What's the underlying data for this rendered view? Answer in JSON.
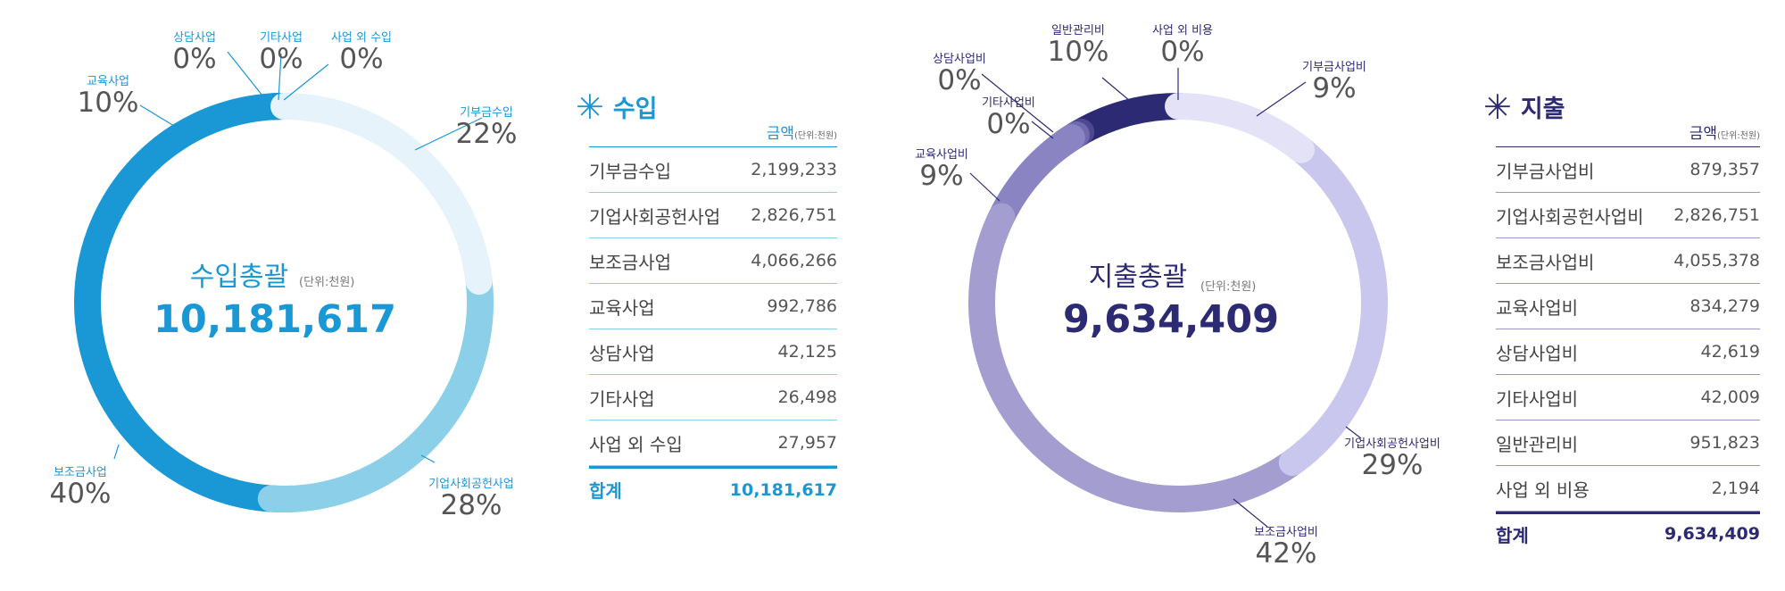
{
  "colors": {
    "income_text": "#1a97d5",
    "income_line": "#8ccfe9",
    "income_dark": "#1a97d5",
    "expense_text": "#2c2a72",
    "expense_line": "#9a95c9",
    "expense_dark": "#2c2a72"
  },
  "income": {
    "center_title": "수입총괄",
    "center_unit": "(단위:천원)",
    "center_total": "10,181,617",
    "section_title": "수입",
    "amount_header": "금액",
    "amount_unit": "(단위:천원)",
    "rows": [
      {
        "label": "기부금수입",
        "value": "2,199,233"
      },
      {
        "label": "기업사회공헌사업",
        "value": "2,826,751"
      },
      {
        "label": "보조금사업",
        "value": "4,066,266"
      },
      {
        "label": "교육사업",
        "value": "992,786"
      },
      {
        "label": "상담사업",
        "value": "42,125"
      },
      {
        "label": "기타사업",
        "value": "26,498"
      },
      {
        "label": "사업 외 수입",
        "value": "27,957"
      }
    ],
    "total": {
      "label": "합계",
      "value": "10,181,617"
    }
  },
  "expense": {
    "center_title": "지출총괄",
    "center_unit": "(단위:천원)",
    "center_total": "9,634,409",
    "section_title": "지출",
    "amount_header": "금액",
    "amount_unit": "(단위:천원)",
    "rows": [
      {
        "label": "기부금사업비",
        "value": "879,357"
      },
      {
        "label": "기업사회공헌사업비",
        "value": "2,826,751"
      },
      {
        "label": "보조금사업비",
        "value": "4,055,378"
      },
      {
        "label": "교육사업비",
        "value": "834,279"
      },
      {
        "label": "상담사업비",
        "value": "42,619"
      },
      {
        "label": "기타사업비",
        "value": "42,009"
      },
      {
        "label": "일반관리비",
        "value": "951,823"
      },
      {
        "label": "사업 외 비용",
        "value": "2,194"
      }
    ],
    "total": {
      "label": "합계",
      "value": "9,634,409"
    }
  },
  "chart_data": [
    {
      "type": "pie",
      "title": "수입총괄",
      "categories": [
        "기부금수입",
        "기업사회공헌사업",
        "보조금사업",
        "교육사업",
        "상담사업",
        "기타사업",
        "사업 외 수입"
      ],
      "values": [
        2199233,
        2826751,
        4066266,
        992786,
        42125,
        26498,
        27957
      ],
      "percent_labels": [
        "22%",
        "28%",
        "40%",
        "10%",
        "0%",
        "0%",
        "0%"
      ],
      "colors": [
        "#e6f3fb",
        "#8ccfe9",
        "#1a97d5",
        "#1a97d5",
        "#1b4a7a",
        "#1b4a7a",
        "#1b4a7a"
      ],
      "total": 10181617
    },
    {
      "type": "pie",
      "title": "지출총괄",
      "categories": [
        "기부금사업비",
        "기업사회공헌사업비",
        "보조금사업비",
        "교육사업비",
        "기타사업비",
        "상담사업비",
        "일반관리비",
        "사업 외 비용"
      ],
      "values": [
        879357,
        2826751,
        4055378,
        834279,
        42009,
        42619,
        951823,
        2194
      ],
      "percent_labels": [
        "9%",
        "29%",
        "42%",
        "9%",
        "0%",
        "0%",
        "10%",
        "0%"
      ],
      "colors": [
        "#e3e2f7",
        "#c9c7ee",
        "#a39ecf",
        "#8a84c2",
        "#6f69ad",
        "#4d4794",
        "#2c2a72",
        "#2c2a72"
      ],
      "total": 9634409
    }
  ]
}
